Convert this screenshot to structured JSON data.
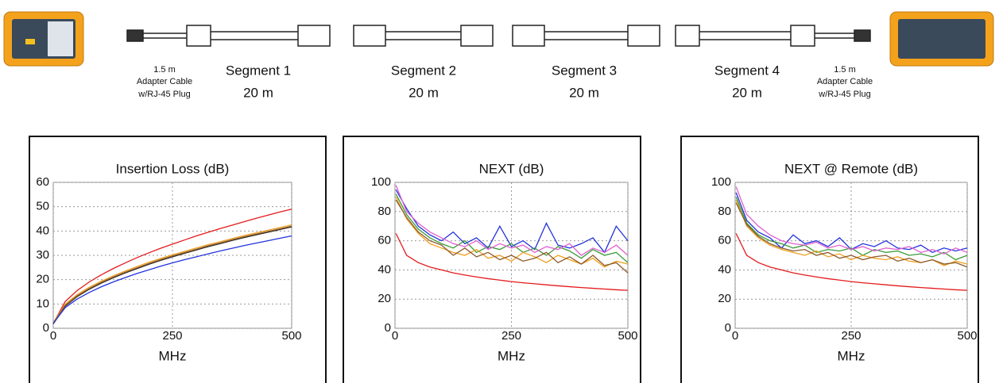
{
  "diagram": {
    "adapter_left": [
      "1.5 m",
      "Adapter Cable",
      "w/RJ-45 Plug"
    ],
    "segments": [
      {
        "name": "Segment 1",
        "length": "20 m"
      },
      {
        "name": "Segment 2",
        "length": "20 m"
      },
      {
        "name": "Segment 3",
        "length": "20 m"
      },
      {
        "name": "Segment 4",
        "length": "20 m"
      }
    ],
    "adapter_right": [
      "1.5 m",
      "Adapter Cable",
      "w/RJ-45 Plug"
    ]
  },
  "chart_data": [
    {
      "type": "line",
      "title": "Insertion Loss (dB)",
      "x_label": "MHz",
      "x": [
        0,
        25,
        50,
        75,
        100,
        125,
        150,
        175,
        200,
        225,
        250,
        275,
        300,
        325,
        350,
        375,
        400,
        425,
        450,
        475,
        500
      ],
      "xlim": [
        0,
        500
      ],
      "xticks": [
        0,
        250,
        500
      ],
      "ylim": [
        0,
        60
      ],
      "yticks": [
        0,
        10,
        20,
        30,
        40,
        50,
        60
      ],
      "grid": true,
      "series": [
        {
          "color": "#e41a1c",
          "values": [
            2,
            11,
            15.5,
            19,
            21.9,
            24.5,
            26.8,
            29,
            31,
            32.9,
            34.6,
            36.3,
            38,
            39.5,
            41,
            42.4,
            43.8,
            45.2,
            46.5,
            47.8,
            49
          ]
        },
        {
          "color": "#222222",
          "values": [
            1.8,
            9.1,
            13,
            16,
            18.5,
            20.7,
            22.7,
            24.5,
            26.3,
            27.9,
            29.4,
            30.8,
            32.2,
            33.6,
            34.8,
            36.1,
            37.3,
            38.4,
            39.5,
            40.6,
            41.7
          ]
        },
        {
          "color": "#f0a020",
          "values": [
            2.3,
            9.9,
            13.8,
            16.8,
            19.3,
            21.5,
            23.5,
            25.3,
            27.1,
            28.7,
            30.2,
            31.6,
            33,
            34.4,
            35.6,
            36.9,
            38.1,
            39.2,
            40.3,
            41.4,
            42.5
          ]
        },
        {
          "color": "#8b5a2b",
          "values": [
            2,
            9.4,
            13.3,
            16.3,
            18.8,
            21,
            23,
            24.8,
            26.6,
            28.2,
            29.7,
            31.1,
            32.5,
            33.9,
            35.1,
            36.4,
            37.6,
            38.7,
            39.8,
            40.9,
            42
          ]
        },
        {
          "color": "#2233dd",
          "values": [
            2,
            8.5,
            12,
            14.7,
            17,
            19,
            20.8,
            22.5,
            24,
            25.5,
            26.9,
            28.2,
            29.4,
            30.6,
            31.8,
            32.9,
            34,
            35,
            36,
            37,
            38
          ]
        }
      ]
    },
    {
      "type": "line",
      "title": "NEXT (dB)",
      "x_label": "MHz",
      "x": [
        2,
        25,
        50,
        75,
        100,
        125,
        150,
        175,
        200,
        225,
        250,
        275,
        300,
        325,
        350,
        375,
        400,
        425,
        450,
        475,
        500
      ],
      "xlim": [
        0,
        500
      ],
      "xticks": [
        0,
        250,
        500
      ],
      "ylim": [
        0,
        100
      ],
      "yticks": [
        0,
        20,
        40,
        60,
        80,
        100
      ],
      "grid": true,
      "series": [
        {
          "color": "#e41a1c",
          "values": [
            65,
            50,
            45,
            42,
            40,
            38,
            36.5,
            35.2,
            34,
            33,
            32,
            31.2,
            30.5,
            29.8,
            29.1,
            28.5,
            27.9,
            27.4,
            26.9,
            26.4,
            26
          ]
        },
        {
          "color": "#2233dd",
          "values": [
            95,
            82,
            70,
            64,
            60,
            66,
            58,
            62,
            55,
            70,
            56,
            60,
            54,
            72,
            57,
            55,
            58,
            62,
            52,
            70,
            60
          ]
        },
        {
          "color": "#3a9a3a",
          "values": [
            92,
            78,
            68,
            62,
            58,
            55,
            60,
            52,
            56,
            54,
            58,
            52,
            55,
            50,
            56,
            53,
            48,
            54,
            50,
            52,
            45
          ]
        },
        {
          "color": "#f0a020",
          "values": [
            90,
            75,
            65,
            58,
            55,
            52,
            50,
            54,
            48,
            50,
            46,
            52,
            49,
            45,
            50,
            47,
            44,
            48,
            42,
            46,
            44
          ]
        },
        {
          "color": "#8b5a2b",
          "values": [
            88,
            76,
            66,
            60,
            57,
            50,
            55,
            49,
            52,
            47,
            50,
            46,
            48,
            52,
            45,
            49,
            44,
            50,
            43,
            45,
            38
          ]
        },
        {
          "color": "#e060d0",
          "values": [
            98,
            80,
            72,
            66,
            62,
            58,
            56,
            60,
            54,
            58,
            55,
            57,
            52,
            56,
            54,
            58,
            50,
            55,
            52,
            57,
            50
          ]
        }
      ]
    },
    {
      "type": "line",
      "title": "NEXT @ Remote (dB)",
      "x_label": "MHz",
      "x": [
        2,
        25,
        50,
        75,
        100,
        125,
        150,
        175,
        200,
        225,
        250,
        275,
        300,
        325,
        350,
        375,
        400,
        425,
        450,
        475,
        500
      ],
      "xlim": [
        0,
        500
      ],
      "xticks": [
        0,
        250,
        500
      ],
      "ylim": [
        0,
        100
      ],
      "yticks": [
        0,
        20,
        40,
        60,
        80,
        100
      ],
      "grid": true,
      "series": [
        {
          "color": "#e41a1c",
          "values": [
            65,
            50,
            45,
            42,
            40,
            38,
            36.5,
            35.2,
            34,
            33,
            32,
            31.2,
            30.5,
            29.8,
            29.1,
            28.5,
            27.9,
            27.4,
            26.9,
            26.4,
            26
          ]
        },
        {
          "color": "#2233dd",
          "values": [
            93,
            74,
            66,
            62,
            55,
            64,
            58,
            60,
            56,
            62,
            54,
            58,
            56,
            60,
            55,
            54,
            57,
            52,
            55,
            53,
            55
          ]
        },
        {
          "color": "#3a9a3a",
          "values": [
            90,
            72,
            64,
            60,
            58,
            55,
            57,
            52,
            54,
            53,
            55,
            50,
            54,
            52,
            53,
            50,
            51,
            49,
            52,
            47,
            50
          ]
        },
        {
          "color": "#f0a020",
          "values": [
            88,
            70,
            62,
            57,
            54,
            52,
            50,
            53,
            49,
            51,
            47,
            50,
            48,
            47,
            49,
            46,
            45,
            47,
            43,
            46,
            44
          ]
        },
        {
          "color": "#8b5a2b",
          "values": [
            86,
            71,
            63,
            58,
            55,
            53,
            54,
            50,
            52,
            48,
            50,
            47,
            49,
            50,
            46,
            48,
            45,
            47,
            44,
            45,
            42
          ]
        },
        {
          "color": "#e060d0",
          "values": [
            97,
            78,
            70,
            64,
            60,
            58,
            57,
            59,
            55,
            57,
            54,
            56,
            53,
            55,
            54,
            56,
            52,
            54,
            51,
            55,
            52
          ]
        }
      ]
    }
  ]
}
